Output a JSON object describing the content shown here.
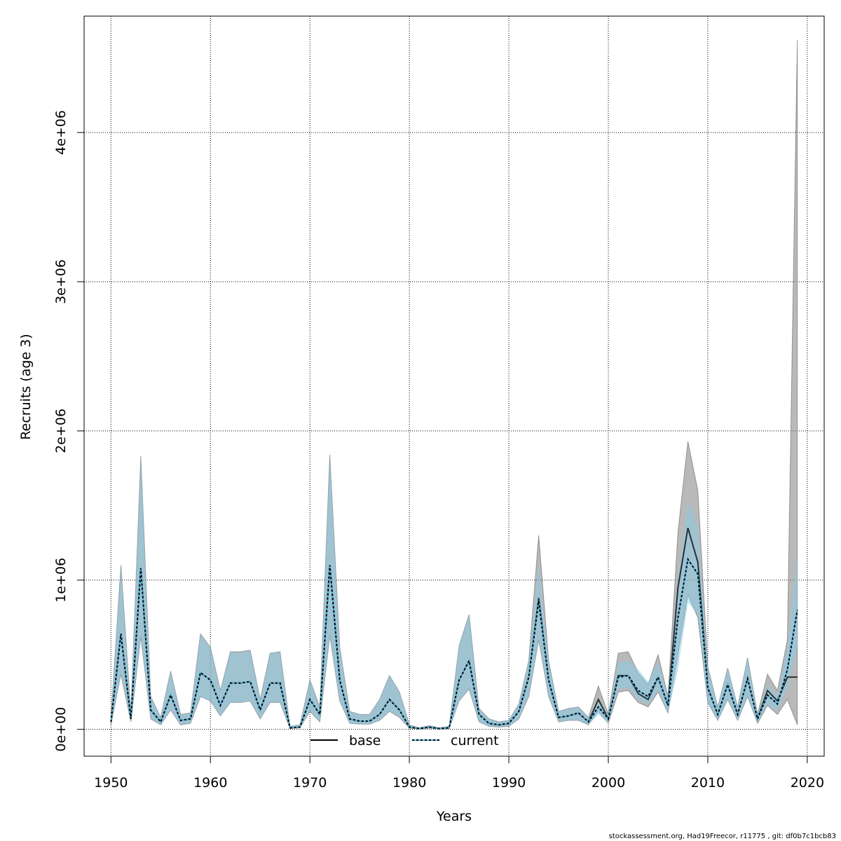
{
  "chart_data": {
    "type": "line",
    "title": "",
    "xlabel": "Years",
    "ylabel": "Recruits (age 3)",
    "xlim": [
      1947.3,
      2021.7
    ],
    "ylim_millions": [
      -0.18,
      4.78
    ],
    "x_ticks": [
      "1950",
      "1960",
      "1970",
      "1980",
      "1990",
      "2000",
      "2010",
      "2020"
    ],
    "x_tick_values": [
      1950,
      1960,
      1970,
      1980,
      1990,
      2000,
      2010,
      2020
    ],
    "y_ticks": [
      "0e+00",
      "1e+06",
      "2e+06",
      "3e+06",
      "4e+06"
    ],
    "y_tick_values_millions": [
      0,
      1,
      2,
      3,
      4
    ],
    "grid": true,
    "legend": {
      "placement": "bottom-center",
      "entries": [
        "base",
        "current"
      ]
    },
    "colors": {
      "base_band": "#808080",
      "current_band": "#87ceeb",
      "line": "#000000",
      "current_line": "#4fb3dd"
    },
    "years": [
      1950,
      1951,
      1952,
      1953,
      1954,
      1955,
      1956,
      1957,
      1958,
      1959,
      1960,
      1961,
      1962,
      1963,
      1964,
      1965,
      1966,
      1967,
      1968,
      1969,
      1970,
      1971,
      1972,
      1973,
      1974,
      1975,
      1976,
      1977,
      1978,
      1979,
      1980,
      1981,
      1982,
      1983,
      1984,
      1985,
      1986,
      1987,
      1988,
      1989,
      1990,
      1991,
      1992,
      1993,
      1994,
      1995,
      1996,
      1997,
      1998,
      1999,
      2000,
      2001,
      2002,
      2003,
      2004,
      2005,
      2006,
      2007,
      2008,
      2009,
      2010,
      2011,
      2012,
      2013,
      2014,
      2015,
      2016,
      2017,
      2018,
      2019
    ],
    "series": [
      {
        "name": "base",
        "est_millions": [
          0.05,
          0.64,
          0.07,
          1.08,
          0.13,
          0.05,
          0.23,
          0.06,
          0.07,
          0.38,
          0.33,
          0.16,
          0.31,
          0.31,
          0.32,
          0.13,
          0.31,
          0.31,
          0.01,
          0.015,
          0.2,
          0.1,
          1.1,
          0.33,
          0.07,
          0.055,
          0.055,
          0.1,
          0.2,
          0.13,
          0.015,
          0.005,
          0.015,
          0.005,
          0.01,
          0.33,
          0.46,
          0.1,
          0.04,
          0.03,
          0.04,
          0.12,
          0.35,
          0.88,
          0.33,
          0.08,
          0.09,
          0.11,
          0.05,
          0.2,
          0.07,
          0.36,
          0.36,
          0.24,
          0.2,
          0.35,
          0.16,
          0.95,
          1.35,
          1.12,
          0.28,
          0.1,
          0.3,
          0.1,
          0.34,
          0.07,
          0.26,
          0.19,
          0.35,
          0.35
        ],
        "lo_millions": [
          0.03,
          0.37,
          0.05,
          0.62,
          0.07,
          0.03,
          0.13,
          0.03,
          0.04,
          0.22,
          0.19,
          0.09,
          0.18,
          0.18,
          0.19,
          0.07,
          0.18,
          0.18,
          0.005,
          0.01,
          0.12,
          0.05,
          0.63,
          0.19,
          0.04,
          0.035,
          0.035,
          0.06,
          0.12,
          0.08,
          0.008,
          0.002,
          0.008,
          0.002,
          0.005,
          0.19,
          0.27,
          0.05,
          0.02,
          0.015,
          0.02,
          0.07,
          0.22,
          0.6,
          0.22,
          0.05,
          0.06,
          0.06,
          0.03,
          0.12,
          0.04,
          0.25,
          0.26,
          0.18,
          0.15,
          0.25,
          0.11,
          0.5,
          0.9,
          0.75,
          0.18,
          0.06,
          0.2,
          0.06,
          0.22,
          0.04,
          0.16,
          0.1,
          0.2,
          0.03
        ],
        "hi_millions": [
          0.08,
          1.1,
          0.11,
          1.83,
          0.22,
          0.08,
          0.39,
          0.1,
          0.11,
          0.64,
          0.55,
          0.26,
          0.52,
          0.52,
          0.53,
          0.2,
          0.51,
          0.52,
          0.02,
          0.03,
          0.33,
          0.15,
          1.84,
          0.55,
          0.12,
          0.1,
          0.1,
          0.2,
          0.36,
          0.25,
          0.03,
          0.01,
          0.025,
          0.01,
          0.02,
          0.56,
          0.77,
          0.14,
          0.07,
          0.05,
          0.06,
          0.17,
          0.46,
          1.3,
          0.46,
          0.12,
          0.14,
          0.15,
          0.08,
          0.29,
          0.1,
          0.51,
          0.52,
          0.38,
          0.3,
          0.5,
          0.22,
          1.32,
          1.93,
          1.6,
          0.42,
          0.15,
          0.41,
          0.15,
          0.48,
          0.1,
          0.37,
          0.26,
          0.6,
          4.62
        ]
      },
      {
        "name": "current",
        "est_millions": [
          0.05,
          0.64,
          0.07,
          1.08,
          0.13,
          0.05,
          0.23,
          0.06,
          0.07,
          0.38,
          0.33,
          0.16,
          0.31,
          0.31,
          0.32,
          0.13,
          0.31,
          0.31,
          0.01,
          0.015,
          0.2,
          0.1,
          1.1,
          0.33,
          0.07,
          0.055,
          0.055,
          0.1,
          0.2,
          0.13,
          0.015,
          0.005,
          0.015,
          0.005,
          0.01,
          0.33,
          0.46,
          0.1,
          0.04,
          0.03,
          0.04,
          0.12,
          0.35,
          0.86,
          0.33,
          0.08,
          0.09,
          0.11,
          0.05,
          0.15,
          0.07,
          0.35,
          0.36,
          0.26,
          0.22,
          0.35,
          0.16,
          0.75,
          1.14,
          1.04,
          0.28,
          0.1,
          0.3,
          0.1,
          0.34,
          0.07,
          0.23,
          0.17,
          0.4,
          0.8
        ],
        "lo_millions": [
          0.03,
          0.37,
          0.05,
          0.62,
          0.07,
          0.03,
          0.13,
          0.03,
          0.04,
          0.22,
          0.19,
          0.09,
          0.18,
          0.18,
          0.19,
          0.07,
          0.18,
          0.18,
          0.005,
          0.01,
          0.12,
          0.05,
          0.63,
          0.19,
          0.04,
          0.035,
          0.035,
          0.06,
          0.12,
          0.08,
          0.008,
          0.002,
          0.008,
          0.002,
          0.005,
          0.19,
          0.27,
          0.05,
          0.02,
          0.015,
          0.02,
          0.07,
          0.22,
          0.6,
          0.22,
          0.05,
          0.06,
          0.06,
          0.03,
          0.1,
          0.04,
          0.27,
          0.28,
          0.2,
          0.17,
          0.26,
          0.11,
          0.4,
          0.85,
          0.77,
          0.18,
          0.06,
          0.2,
          0.06,
          0.22,
          0.04,
          0.17,
          0.12,
          0.28,
          0.55
        ],
        "hi_millions": [
          0.08,
          1.1,
          0.11,
          1.83,
          0.22,
          0.08,
          0.39,
          0.1,
          0.11,
          0.64,
          0.55,
          0.26,
          0.52,
          0.51,
          0.53,
          0.2,
          0.51,
          0.52,
          0.02,
          0.03,
          0.33,
          0.15,
          1.84,
          0.55,
          0.12,
          0.1,
          0.1,
          0.2,
          0.36,
          0.25,
          0.03,
          0.01,
          0.025,
          0.01,
          0.02,
          0.56,
          0.77,
          0.14,
          0.07,
          0.05,
          0.06,
          0.17,
          0.46,
          1.12,
          0.46,
          0.12,
          0.14,
          0.15,
          0.08,
          0.2,
          0.1,
          0.45,
          0.46,
          0.4,
          0.32,
          0.45,
          0.22,
          1.0,
          1.53,
          1.35,
          0.42,
          0.15,
          0.41,
          0.15,
          0.48,
          0.1,
          0.3,
          0.22,
          0.55,
          1.18
        ]
      }
    ]
  },
  "footer": "stockassessment.org, Had19Freecor, r11775 , git: df0b7c1bcb83"
}
